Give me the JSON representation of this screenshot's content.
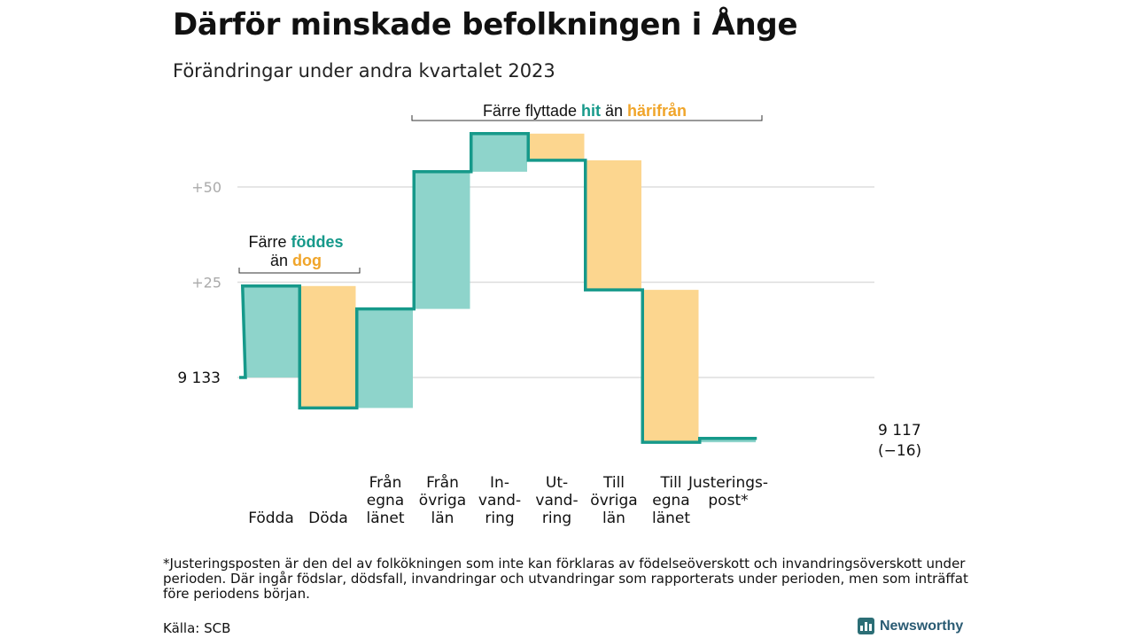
{
  "title": "Därför minskade befolkningen i Ånge",
  "subtitle": "Förändringar under andra kvartalet 2023",
  "colors": {
    "positive": "#8ed4cb",
    "negative": "#fcd68f",
    "line": "#16998a",
    "pos_text": "#16998a",
    "neg_text": "#f0a52a",
    "grid": "#dddddd"
  },
  "chart_data": {
    "type": "waterfall",
    "start_value": 9133,
    "start_label": "9  133",
    "end_label_value": "9 117",
    "end_label_change": "(−16)",
    "y_ticks": [
      {
        "value": 9133,
        "label": ""
      },
      {
        "value": 9158,
        "label": "+25"
      },
      {
        "value": 9183,
        "label": "+50"
      }
    ],
    "steps": [
      {
        "label": [
          "",
          "",
          "Födda"
        ],
        "delta": 24
      },
      {
        "label": [
          "",
          "",
          "Döda"
        ],
        "delta": -32
      },
      {
        "label": [
          "Från",
          "egna",
          "länet"
        ],
        "delta": 26
      },
      {
        "label": [
          "Från",
          "övriga",
          "län"
        ],
        "delta": 36
      },
      {
        "label": [
          "In-",
          "vand-",
          "ring"
        ],
        "delta": 10
      },
      {
        "label": [
          "Ut-",
          "vand-",
          "ring"
        ],
        "delta": -7
      },
      {
        "label": [
          "Till",
          "övriga",
          "län"
        ],
        "delta": -34
      },
      {
        "label": [
          "Till",
          "egna",
          "länet"
        ],
        "delta": -40
      },
      {
        "label": [
          "Justerings-",
          "post*",
          ""
        ],
        "delta": 1
      }
    ],
    "annotations": {
      "births": {
        "line1_a": "Färre ",
        "line1_b": "föddes",
        "line2_a": "än ",
        "line2_b": "dog"
      },
      "migration": {
        "a": "Färre flyttade ",
        "b": "hit",
        "c": " än ",
        "d": "härifrån"
      }
    }
  },
  "footnote": "*Justeringsposten är den del av folkökningen som inte kan förklaras av födelseöverskott och invandringsöverskott under perioden. Där ingår födslar, dödsfall, invandringar och utvandringar som rapporterats under perioden, men som inträffat före periodens början.",
  "source": "Källa: SCB",
  "brand": "Newsworthy"
}
